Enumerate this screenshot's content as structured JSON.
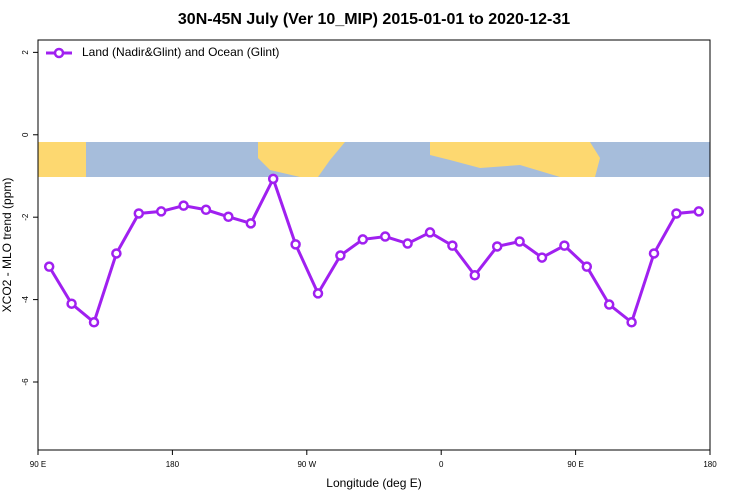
{
  "chart_data": {
    "type": "line",
    "title": "30N-45N July (Ver 10_MIP)   2015-01-01 to 2020-12-31",
    "x_label": "Longitude (deg E)",
    "y_label": "XCO2 - MLO trend (ppm)",
    "x": [
      97.5,
      112.5,
      127.5,
      142.5,
      157.5,
      172.5,
      187.5,
      202.5,
      217.5,
      232.5,
      247.5,
      262.5,
      277.5,
      292.5,
      307.5,
      322.5,
      337.5,
      352.5,
      367.5,
      382.5,
      397.5,
      412.5,
      427.5,
      442.5,
      457.5,
      472.5,
      487.5,
      502.5,
      517.5,
      532.5
    ],
    "series": [
      {
        "name": "Land (Nadir&Glint) and Ocean (Glint)",
        "color": "#a020f0",
        "values": [
          -3.2,
          -4.1,
          -4.55,
          -2.88,
          -1.91,
          -1.86,
          -1.72,
          -1.82,
          -1.99,
          -2.15,
          -1.07,
          -2.66,
          -3.85,
          -2.93,
          -2.54,
          -2.47,
          -2.64,
          -2.37,
          -2.69,
          -3.41,
          -2.71,
          -2.59,
          -2.98,
          -2.69,
          -3.2,
          -4.12,
          -4.55,
          -2.88,
          -1.91,
          -1.86
        ]
      }
    ],
    "xlim": [
      90,
      540
    ],
    "xticks": [
      {
        "value": 90,
        "label": "90 E"
      },
      180,
      {
        "value": 270,
        "label": "90 W"
      },
      {
        "value": 360,
        "label": "0"
      },
      {
        "value": 450,
        "label": "90 E"
      },
      {
        "value": 540,
        "label": "180"
      }
    ],
    "ylim": [
      -7.65,
      2.3
    ],
    "yticks": [
      2,
      0,
      -2,
      -4,
      -6
    ],
    "legend": "top-left"
  }
}
